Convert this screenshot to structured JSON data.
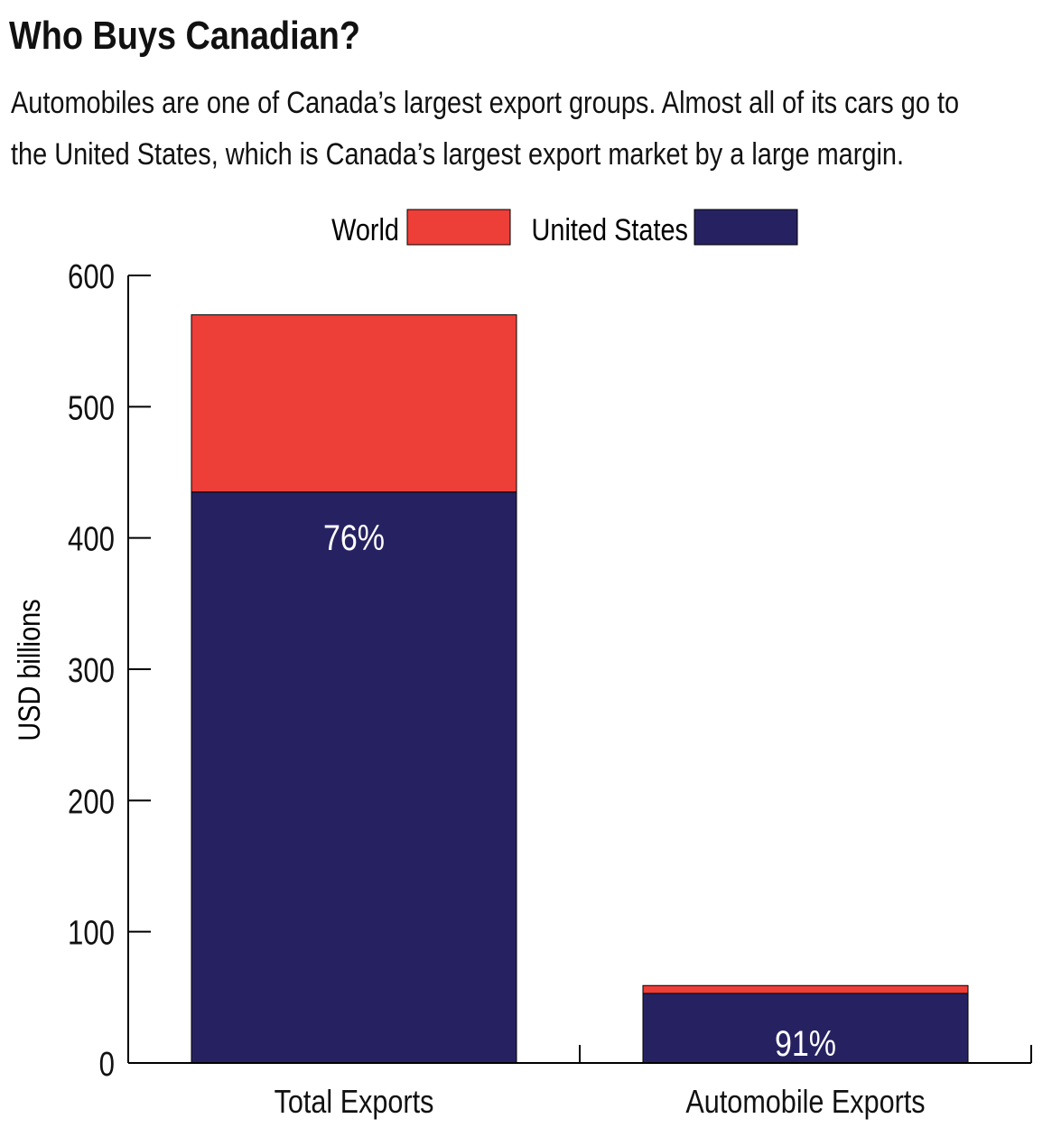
{
  "title": "Who Buys Canadian?",
  "subtitle": "Automobiles are one of Canada’s largest export groups. Almost all of its cars go to the United States, which is Canada’s largest export market by a large margin.",
  "colors": {
    "world": "#ee3e38",
    "united_states": "#262262",
    "axis": "#000000",
    "bar_label": "#ffffff"
  },
  "chart_data": {
    "type": "bar",
    "stacked": true,
    "title": "Who Buys Canadian?",
    "xlabel": "",
    "ylabel": "USD billions",
    "ylim": [
      0,
      600
    ],
    "yticks": [
      0,
      100,
      200,
      300,
      400,
      500,
      600
    ],
    "categories": [
      "Total Exports",
      "Automobile Exports"
    ],
    "series": [
      {
        "name": "United States",
        "key": "united_states",
        "values": [
          435,
          53
        ]
      },
      {
        "name": "World",
        "key": "world",
        "values": [
          135,
          6
        ]
      }
    ],
    "totals": [
      570,
      59
    ],
    "bar_labels": [
      "76%",
      "91%"
    ],
    "legend": [
      "World",
      "United States"
    ],
    "legend_position": "top-center",
    "grid": false
  }
}
